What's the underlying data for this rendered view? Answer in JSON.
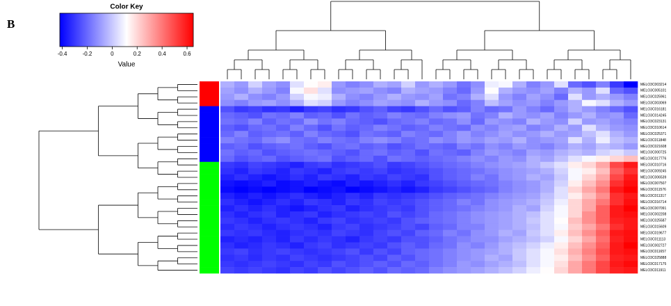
{
  "panel_label": "B",
  "chart_data": {
    "type": "heatmap",
    "key_title": "Color Key",
    "key_label": "Value",
    "zlim": [
      -0.42,
      0.65
    ],
    "key_ticks": [
      -0.4,
      -0.2,
      0,
      0.2,
      0.4,
      0.6
    ],
    "low_color": "#0000ff",
    "mid_color": "#ffffff",
    "high_color": "#ff0000",
    "rows": [
      "MELO3C003214",
      "MELO3C005101",
      "MELO3C025961",
      "MELO3C003069",
      "MELO3C016181",
      "MELO3C014245",
      "MELO3C023131",
      "MELO3C010614",
      "MELO3C025371",
      "MELO3C011848",
      "MELO3C021608",
      "MELO3C000725",
      "MELO3C017776",
      "MELO3C010716",
      "MELO3C009245",
      "MELO3C006539",
      "MELO3C007507",
      "MELO3C011576",
      "MELO3C011317",
      "MELO3C016714",
      "MELO3C007091",
      "MELO3C002208",
      "MELO3C025587",
      "MELO3C015609",
      "MELO3C019677",
      "MELO3C011113",
      "MELO3C002727",
      "MELO3C011657",
      "MELO3C025888",
      "MELO3C017175",
      "MELO3C011911"
    ],
    "row_colors": [
      "#ff0000",
      "#ff0000",
      "#ff0000",
      "#ff0000",
      "#0000ff",
      "#0000ff",
      "#0000ff",
      "#0000ff",
      "#0000ff",
      "#0000ff",
      "#0000ff",
      "#0000ff",
      "#0000ff",
      "#00ff00",
      "#00ff00",
      "#00ff00",
      "#00ff00",
      "#00ff00",
      "#00ff00",
      "#00ff00",
      "#00ff00",
      "#00ff00",
      "#00ff00",
      "#00ff00",
      "#00ff00",
      "#00ff00",
      "#00ff00",
      "#00ff00",
      "#00ff00",
      "#00ff00",
      "#00ff00"
    ],
    "columns": [
      null,
      null,
      null,
      null,
      null,
      null,
      null,
      null,
      null,
      null,
      null,
      null,
      null,
      null,
      null,
      null,
      null,
      null,
      null,
      null,
      null,
      null,
      null,
      null,
      null,
      null,
      null,
      null,
      null,
      null
    ],
    "values": [
      [
        -0.05,
        -0.1,
        0.02,
        -0.08,
        -0.12,
        0.05,
        0.12,
        0.15,
        -0.1,
        -0.15,
        -0.12,
        -0.05,
        -0.08,
        0.02,
        -0.1,
        -0.05,
        -0.1,
        -0.18,
        -0.12,
        0.08,
        0.1,
        -0.05,
        -0.15,
        -0.1,
        0.05,
        -0.2,
        -0.25,
        -0.15,
        -0.3,
        -0.42
      ],
      [
        -0.08,
        -0.12,
        -0.05,
        -0.1,
        -0.15,
        0.1,
        0.18,
        0.05,
        -0.12,
        -0.1,
        -0.08,
        -0.12,
        -0.15,
        -0.05,
        -0.08,
        -0.1,
        -0.15,
        -0.2,
        -0.1,
        0.12,
        -0.05,
        -0.1,
        -0.12,
        -0.08,
        -0.15,
        -0.05,
        -0.1,
        0.05,
        -0.2,
        -0.25
      ],
      [
        -0.1,
        -0.05,
        -0.12,
        -0.15,
        -0.1,
        0.02,
        0.1,
        0.08,
        -0.05,
        -0.12,
        -0.15,
        -0.1,
        -0.05,
        -0.1,
        -0.12,
        -0.08,
        -0.18,
        -0.15,
        -0.05,
        0.05,
        -0.1,
        -0.15,
        -0.08,
        -0.12,
        -0.2,
        0.05,
        -0.1,
        -0.05,
        -0.1,
        -0.15
      ],
      [
        -0.12,
        -0.15,
        -0.1,
        -0.08,
        -0.12,
        -0.05,
        0.05,
        0.02,
        -0.1,
        -0.15,
        -0.12,
        -0.08,
        -0.1,
        -0.12,
        -0.05,
        -0.1,
        -0.12,
        -0.2,
        -0.15,
        -0.02,
        -0.08,
        -0.12,
        -0.1,
        -0.15,
        -0.1,
        -0.05,
        0.1,
        0.05,
        -0.05,
        -0.1
      ],
      [
        -0.25,
        -0.3,
        -0.28,
        -0.32,
        -0.3,
        -0.35,
        -0.3,
        -0.28,
        -0.32,
        -0.3,
        -0.25,
        -0.22,
        -0.28,
        -0.3,
        -0.25,
        -0.2,
        -0.25,
        -0.22,
        -0.15,
        -0.2,
        -0.18,
        -0.1,
        -0.15,
        -0.2,
        -0.12,
        -0.05,
        -0.1,
        -0.15,
        -0.2,
        -0.25
      ],
      [
        -0.2,
        -0.22,
        -0.25,
        -0.18,
        -0.2,
        -0.15,
        -0.22,
        -0.2,
        -0.25,
        -0.18,
        -0.22,
        -0.2,
        -0.15,
        -0.18,
        -0.2,
        -0.15,
        -0.12,
        -0.1,
        -0.18,
        -0.15,
        -0.05,
        -0.1,
        -0.12,
        -0.08,
        -0.15,
        -0.1,
        -0.05,
        -0.12,
        -0.1,
        -0.2
      ],
      [
        -0.18,
        -0.2,
        -0.15,
        -0.22,
        -0.18,
        -0.2,
        -0.12,
        -0.18,
        -0.15,
        -0.2,
        -0.22,
        -0.25,
        -0.2,
        -0.18,
        -0.15,
        -0.2,
        -0.18,
        -0.12,
        -0.2,
        -0.1,
        -0.12,
        -0.15,
        -0.05,
        -0.1,
        -0.12,
        0.02,
        -0.1,
        -0.08,
        -0.12,
        -0.15
      ],
      [
        -0.22,
        -0.25,
        -0.2,
        -0.18,
        -0.22,
        -0.15,
        -0.2,
        -0.25,
        -0.18,
        -0.22,
        -0.2,
        -0.15,
        -0.18,
        -0.22,
        -0.2,
        -0.15,
        -0.18,
        -0.2,
        -0.12,
        -0.15,
        -0.1,
        -0.08,
        -0.15,
        -0.12,
        -0.05,
        -0.1,
        0.05,
        -0.05,
        -0.1,
        -0.12
      ],
      [
        -0.2,
        -0.15,
        -0.22,
        -0.2,
        -0.18,
        -0.22,
        -0.15,
        -0.2,
        -0.22,
        -0.25,
        -0.18,
        -0.2,
        -0.22,
        -0.15,
        -0.18,
        -0.2,
        -0.15,
        -0.1,
        -0.15,
        -0.12,
        -0.08,
        -0.12,
        -0.1,
        -0.05,
        -0.1,
        -0.08,
        -0.02,
        0.05,
        -0.05,
        -0.1
      ],
      [
        -0.15,
        -0.18,
        -0.2,
        -0.15,
        -0.12,
        -0.18,
        -0.2,
        -0.15,
        -0.18,
        -0.2,
        -0.15,
        -0.12,
        -0.15,
        -0.2,
        -0.18,
        -0.12,
        -0.15,
        -0.1,
        -0.12,
        -0.08,
        -0.1,
        -0.05,
        -0.12,
        -0.1,
        -0.08,
        0.05,
        -0.05,
        0.08,
        -0.02,
        -0.05
      ],
      [
        -0.22,
        -0.2,
        -0.25,
        -0.22,
        -0.2,
        -0.18,
        -0.22,
        -0.25,
        -0.2,
        -0.18,
        -0.22,
        -0.2,
        -0.25,
        -0.22,
        -0.18,
        -0.2,
        -0.22,
        -0.15,
        -0.18,
        -0.12,
        -0.15,
        -0.1,
        -0.12,
        -0.15,
        -0.1,
        -0.05,
        -0.08,
        -0.02,
        -0.05,
        -0.1
      ],
      [
        -0.18,
        -0.22,
        -0.2,
        -0.25,
        -0.22,
        -0.2,
        -0.18,
        -0.2,
        -0.22,
        -0.25,
        -0.2,
        -0.18,
        -0.22,
        -0.2,
        -0.25,
        -0.18,
        -0.2,
        -0.22,
        -0.15,
        -0.1,
        -0.12,
        -0.15,
        -0.08,
        -0.1,
        -0.05,
        -0.02,
        -0.05,
        0.02,
        0.05,
        0.0
      ],
      [
        -0.2,
        -0.25,
        -0.22,
        -0.2,
        -0.25,
        -0.22,
        -0.2,
        -0.18,
        -0.25,
        -0.22,
        -0.2,
        -0.25,
        -0.18,
        -0.2,
        -0.22,
        -0.2,
        -0.18,
        -0.15,
        -0.12,
        -0.15,
        -0.1,
        -0.12,
        -0.05,
        -0.08,
        -0.02,
        0.05,
        0.1,
        0.15,
        0.2,
        0.25
      ],
      [
        -0.3,
        -0.32,
        -0.28,
        -0.3,
        -0.32,
        -0.35,
        -0.3,
        -0.28,
        -0.32,
        -0.3,
        -0.28,
        -0.25,
        -0.3,
        -0.28,
        -0.25,
        -0.22,
        -0.2,
        -0.18,
        -0.15,
        -0.12,
        -0.1,
        -0.08,
        -0.05,
        0.0,
        0.05,
        0.15,
        0.2,
        0.3,
        0.5,
        0.6
      ],
      [
        -0.32,
        -0.35,
        -0.3,
        -0.32,
        -0.35,
        -0.3,
        -0.32,
        -0.35,
        -0.3,
        -0.28,
        -0.3,
        -0.28,
        -0.32,
        -0.3,
        -0.28,
        -0.25,
        -0.22,
        -0.2,
        -0.18,
        -0.15,
        -0.12,
        -0.1,
        -0.08,
        -0.05,
        0.02,
        0.1,
        0.15,
        0.25,
        0.45,
        0.55
      ],
      [
        -0.35,
        -0.32,
        -0.35,
        -0.38,
        -0.35,
        -0.32,
        -0.35,
        -0.3,
        -0.32,
        -0.35,
        -0.3,
        -0.32,
        -0.28,
        -0.3,
        -0.32,
        -0.25,
        -0.22,
        -0.2,
        -0.15,
        -0.18,
        -0.12,
        -0.1,
        -0.05,
        -0.08,
        0.0,
        0.1,
        0.2,
        0.3,
        0.5,
        0.6
      ],
      [
        -0.38,
        -0.4,
        -0.38,
        -0.35,
        -0.4,
        -0.38,
        -0.35,
        -0.38,
        -0.4,
        -0.35,
        -0.38,
        -0.35,
        -0.32,
        -0.35,
        -0.3,
        -0.28,
        -0.25,
        -0.22,
        -0.2,
        -0.18,
        -0.15,
        -0.12,
        -0.1,
        -0.05,
        0.02,
        0.15,
        0.25,
        0.35,
        0.55,
        0.62
      ],
      [
        -0.4,
        -0.42,
        -0.4,
        -0.42,
        -0.4,
        -0.38,
        -0.42,
        -0.4,
        -0.38,
        -0.42,
        -0.4,
        -0.38,
        -0.35,
        -0.38,
        -0.35,
        -0.3,
        -0.28,
        -0.25,
        -0.22,
        -0.2,
        -0.15,
        -0.12,
        -0.1,
        -0.05,
        0.05,
        0.2,
        0.3,
        0.4,
        0.6,
        0.65
      ],
      [
        -0.35,
        -0.38,
        -0.35,
        -0.38,
        -0.35,
        -0.32,
        -0.35,
        -0.38,
        -0.35,
        -0.32,
        -0.35,
        -0.3,
        -0.32,
        -0.3,
        -0.28,
        -0.25,
        -0.22,
        -0.2,
        -0.18,
        -0.15,
        -0.12,
        -0.1,
        -0.08,
        -0.02,
        0.05,
        0.15,
        0.25,
        0.35,
        0.55,
        0.6
      ],
      [
        -0.32,
        -0.35,
        -0.38,
        -0.35,
        -0.32,
        -0.35,
        -0.3,
        -0.32,
        -0.35,
        -0.3,
        -0.32,
        -0.28,
        -0.3,
        -0.28,
        -0.25,
        -0.22,
        -0.2,
        -0.15,
        -0.18,
        -0.12,
        -0.1,
        -0.08,
        -0.05,
        0.0,
        0.08,
        0.2,
        0.3,
        0.4,
        0.55,
        0.62
      ],
      [
        -0.35,
        -0.32,
        -0.35,
        -0.32,
        -0.35,
        -0.38,
        -0.35,
        -0.32,
        -0.3,
        -0.35,
        -0.32,
        -0.3,
        -0.28,
        -0.3,
        -0.25,
        -0.22,
        -0.2,
        -0.18,
        -0.15,
        -0.12,
        -0.1,
        -0.05,
        -0.08,
        0.02,
        0.1,
        0.2,
        0.3,
        0.45,
        0.6,
        0.65
      ],
      [
        -0.32,
        -0.35,
        -0.32,
        -0.3,
        -0.35,
        -0.32,
        -0.3,
        -0.35,
        -0.32,
        -0.3,
        -0.28,
        -0.3,
        -0.25,
        -0.28,
        -0.25,
        -0.2,
        -0.18,
        -0.15,
        -0.12,
        -0.1,
        -0.08,
        -0.05,
        -0.02,
        0.05,
        0.1,
        0.2,
        0.35,
        0.45,
        0.6,
        0.62
      ],
      [
        -0.3,
        -0.32,
        -0.35,
        -0.32,
        -0.3,
        -0.32,
        -0.35,
        -0.3,
        -0.28,
        -0.32,
        -0.3,
        -0.28,
        -0.3,
        -0.25,
        -0.22,
        -0.2,
        -0.18,
        -0.15,
        -0.12,
        -0.1,
        -0.08,
        -0.05,
        0.0,
        0.05,
        0.12,
        0.25,
        0.35,
        0.45,
        0.58,
        0.6
      ],
      [
        -0.33,
        -0.3,
        -0.32,
        -0.35,
        -0.32,
        -0.3,
        -0.32,
        -0.35,
        -0.3,
        -0.28,
        -0.32,
        -0.3,
        -0.28,
        -0.25,
        -0.28,
        -0.22,
        -0.2,
        -0.15,
        -0.15,
        -0.1,
        -0.08,
        -0.05,
        -0.02,
        0.05,
        0.1,
        0.22,
        0.3,
        0.4,
        0.55,
        0.6
      ],
      [
        -0.3,
        -0.32,
        -0.3,
        -0.33,
        -0.35,
        -0.32,
        -0.3,
        -0.32,
        -0.28,
        -0.3,
        -0.32,
        -0.28,
        -0.25,
        -0.28,
        -0.22,
        -0.2,
        -0.15,
        -0.18,
        -0.12,
        -0.1,
        -0.05,
        -0.08,
        0.0,
        0.05,
        0.15,
        0.25,
        0.35,
        0.45,
        0.6,
        0.62
      ],
      [
        -0.35,
        -0.33,
        -0.35,
        -0.32,
        -0.35,
        -0.3,
        -0.33,
        -0.3,
        -0.32,
        -0.35,
        -0.3,
        -0.28,
        -0.3,
        -0.25,
        -0.25,
        -0.22,
        -0.18,
        -0.15,
        -0.12,
        -0.12,
        -0.08,
        -0.05,
        -0.02,
        0.02,
        0.1,
        0.2,
        0.3,
        0.42,
        0.58,
        0.62
      ],
      [
        -0.32,
        -0.35,
        -0.33,
        -0.3,
        -0.32,
        -0.35,
        -0.3,
        -0.28,
        -0.32,
        -0.3,
        -0.28,
        -0.3,
        -0.25,
        -0.22,
        -0.25,
        -0.2,
        -0.18,
        -0.12,
        -0.15,
        -0.1,
        -0.05,
        -0.02,
        0.02,
        0.08,
        0.15,
        0.25,
        0.35,
        0.45,
        0.6,
        0.65
      ],
      [
        -0.3,
        -0.28,
        -0.32,
        -0.3,
        -0.28,
        -0.3,
        -0.32,
        -0.3,
        -0.28,
        -0.25,
        -0.3,
        -0.25,
        -0.28,
        -0.22,
        -0.2,
        -0.18,
        -0.15,
        -0.12,
        -0.1,
        -0.08,
        -0.05,
        0.0,
        0.05,
        0.1,
        0.18,
        0.28,
        0.38,
        0.48,
        0.6,
        0.62
      ],
      [
        -0.32,
        -0.3,
        -0.33,
        -0.3,
        -0.32,
        -0.28,
        -0.3,
        -0.32,
        -0.3,
        -0.28,
        -0.25,
        -0.28,
        -0.22,
        -0.25,
        -0.2,
        -0.18,
        -0.15,
        -0.12,
        -0.1,
        -0.05,
        -0.08,
        0.0,
        0.05,
        0.1,
        0.15,
        0.25,
        0.35,
        0.45,
        0.58,
        0.6
      ],
      [
        -0.3,
        -0.32,
        -0.3,
        -0.28,
        -0.3,
        -0.32,
        -0.28,
        -0.3,
        -0.25,
        -0.28,
        -0.25,
        -0.22,
        -0.25,
        -0.2,
        -0.22,
        -0.18,
        -0.15,
        -0.1,
        -0.12,
        -0.08,
        -0.05,
        -0.02,
        0.05,
        0.1,
        0.18,
        0.3,
        0.4,
        0.5,
        0.6,
        0.63
      ],
      [
        -0.28,
        -0.3,
        -0.28,
        -0.3,
        -0.32,
        -0.28,
        -0.3,
        -0.25,
        -0.28,
        -0.25,
        -0.22,
        -0.25,
        -0.2,
        -0.22,
        -0.2,
        -0.15,
        -0.12,
        -0.1,
        -0.08,
        -0.05,
        -0.02,
        0.02,
        0.08,
        0.12,
        0.2,
        0.3,
        0.4,
        0.5,
        0.58,
        0.6
      ]
    ]
  }
}
